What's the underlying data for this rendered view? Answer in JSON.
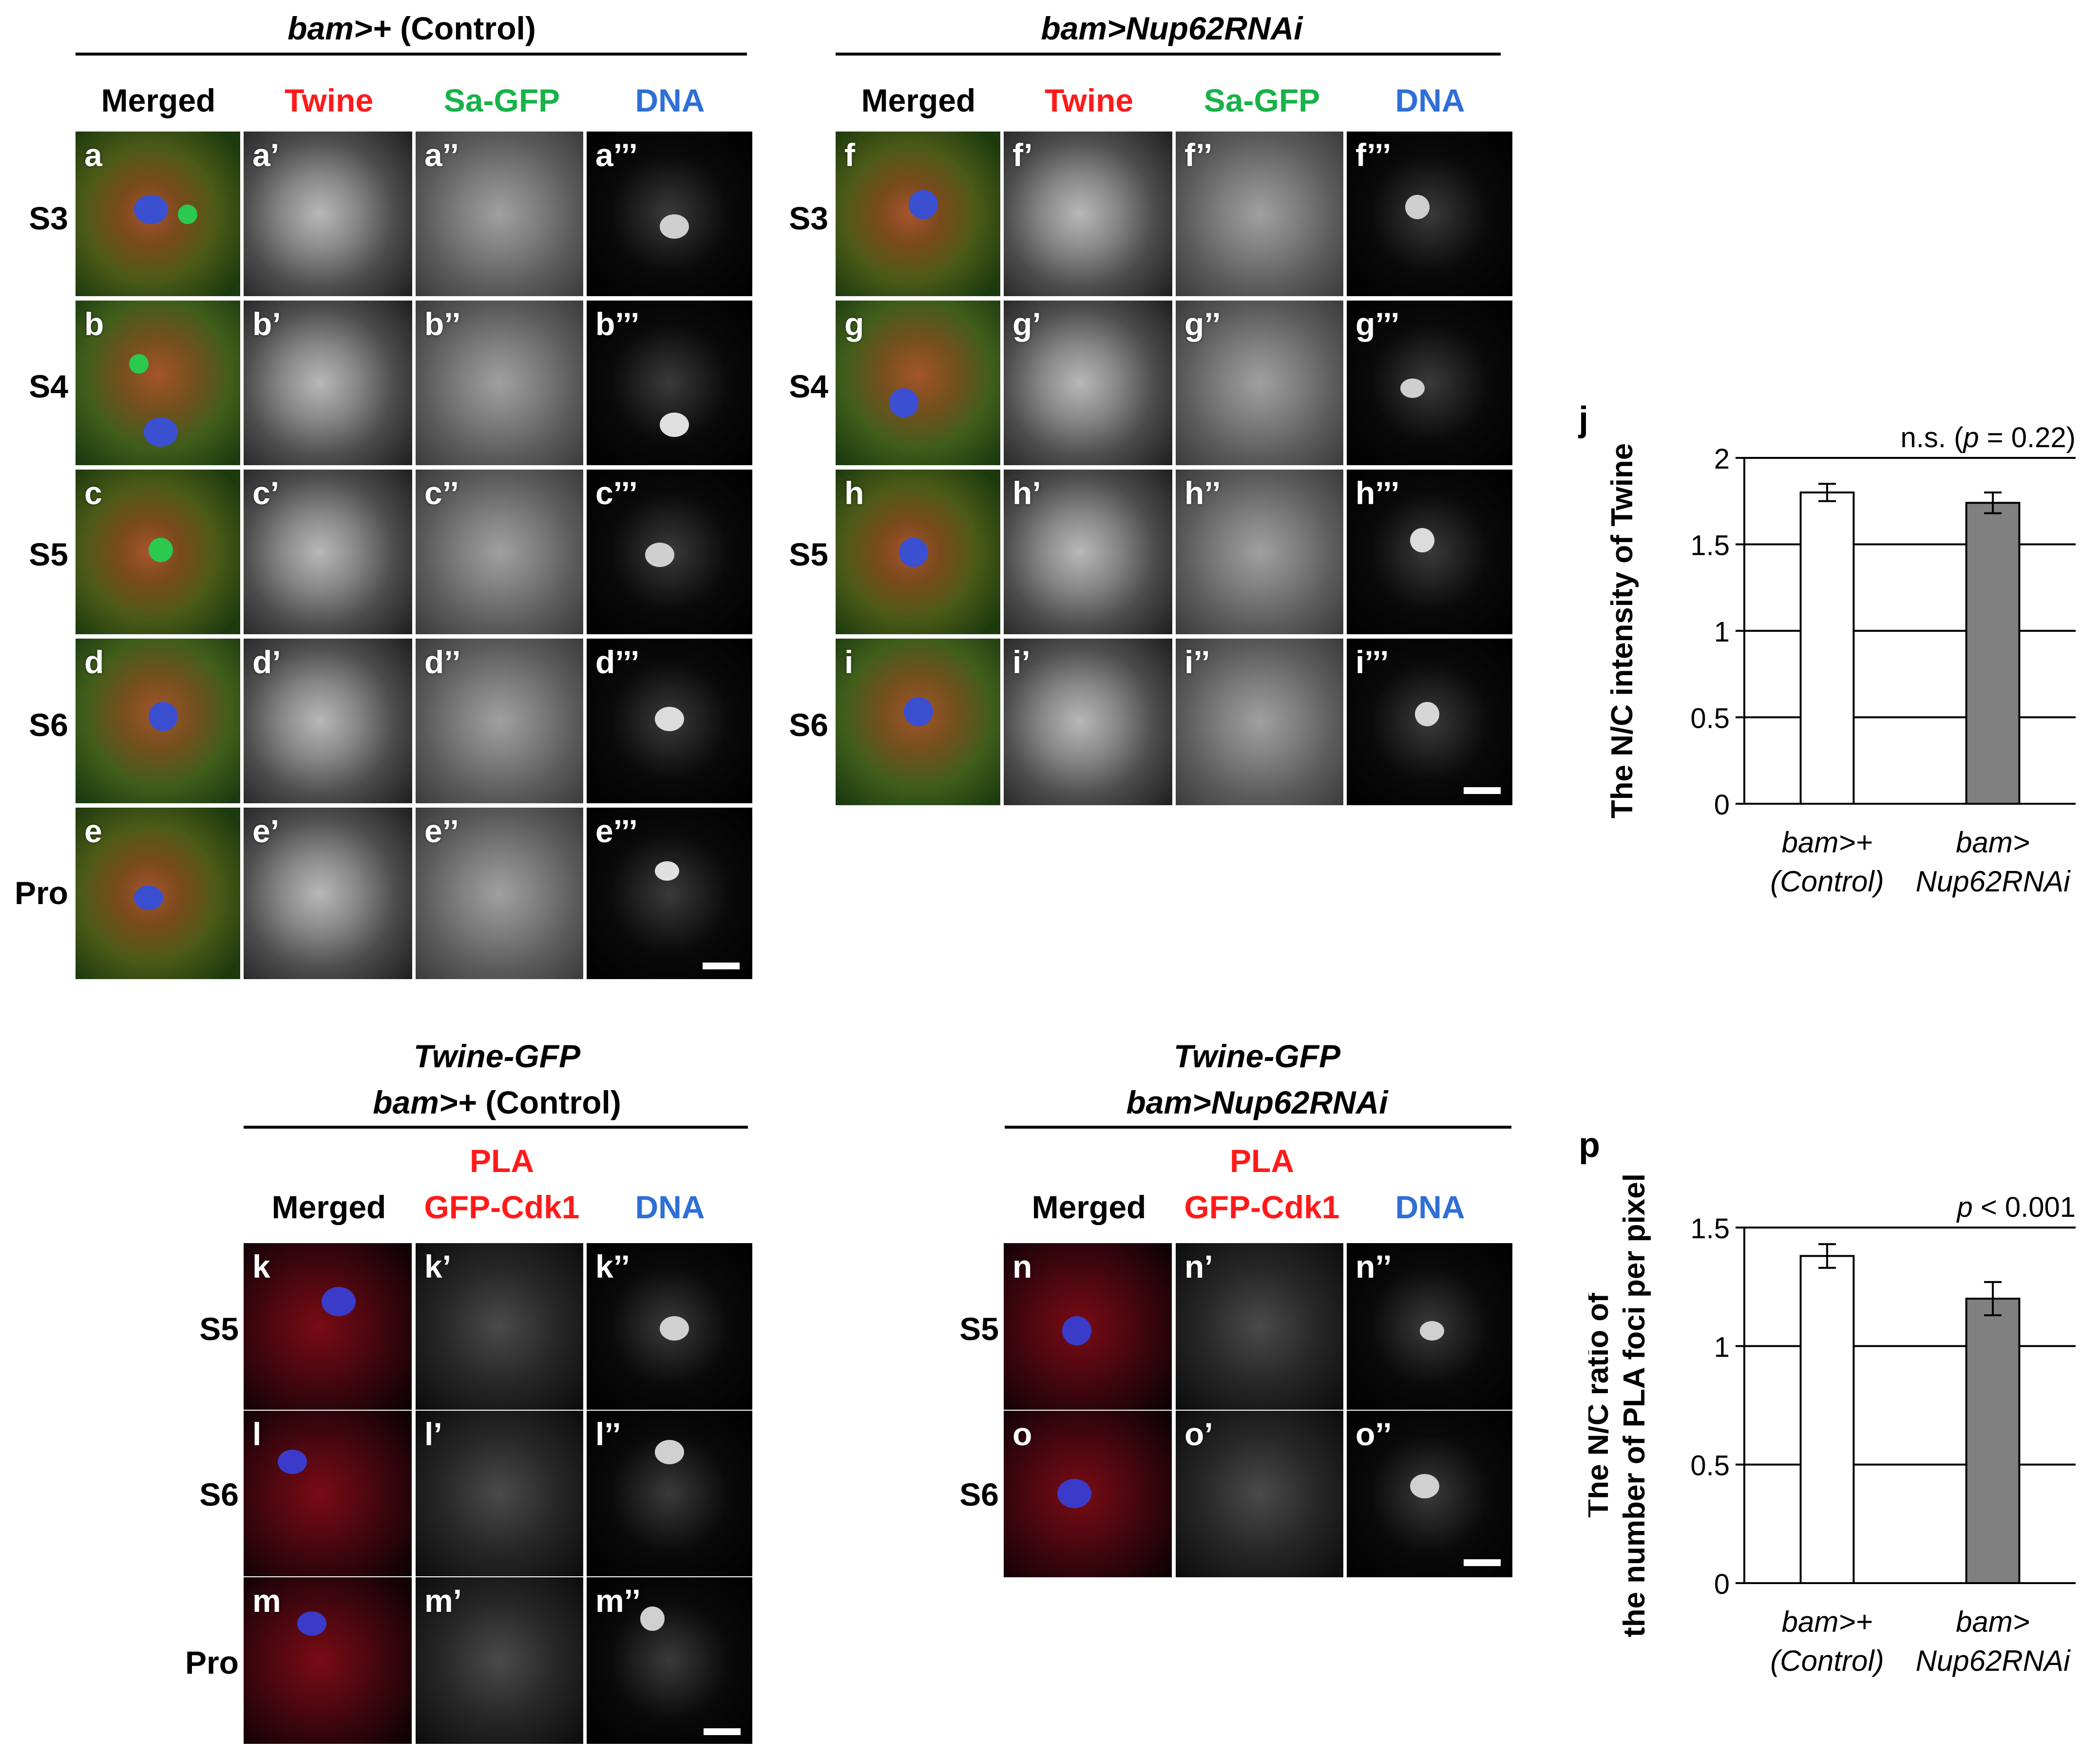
{
  "figure": {
    "group_a": {
      "header_italic": "bam>+",
      "header_rest": " (Control)",
      "columns": [
        "Merged",
        "Twine",
        "Sa-GFP",
        "DNA"
      ],
      "rows": [
        {
          "stage": "S3",
          "labels": [
            "a",
            "a’",
            "a’’",
            "a’’’"
          ]
        },
        {
          "stage": "S4",
          "labels": [
            "b",
            "b’",
            "b’’",
            "b’’’"
          ]
        },
        {
          "stage": "S5",
          "labels": [
            "c",
            "c’",
            "c’’",
            "c’’’"
          ]
        },
        {
          "stage": "S6",
          "labels": [
            "d",
            "d’",
            "d’’",
            "d’’’"
          ]
        },
        {
          "stage": "Pro",
          "labels": [
            "e",
            "e’",
            "e’’",
            "e’’’"
          ]
        }
      ]
    },
    "group_b": {
      "header": "bam>Nup62RNAi",
      "columns": [
        "Merged",
        "Twine",
        "Sa-GFP",
        "DNA"
      ],
      "rows": [
        {
          "stage": "S3",
          "labels": [
            "f",
            "f’",
            "f’’",
            "f’’’"
          ]
        },
        {
          "stage": "S4",
          "labels": [
            "g",
            "g’",
            "g’’",
            "g’’’"
          ]
        },
        {
          "stage": "S5",
          "labels": [
            "h",
            "h’",
            "h’’",
            "h’’’"
          ]
        },
        {
          "stage": "S6",
          "labels": [
            "i",
            "i’",
            "i’’",
            "i’’’"
          ]
        }
      ]
    },
    "group_c": {
      "header_line1": "Twine-GFP",
      "header_line2_italic": "bam>+",
      "header_line2_rest": " (Control)",
      "pla_label": "PLA",
      "columns": [
        "Merged",
        "GFP-Cdk1",
        "DNA"
      ],
      "rows": [
        {
          "stage": "S5",
          "labels": [
            "k",
            "k’",
            "k’’"
          ]
        },
        {
          "stage": "S6",
          "labels": [
            "l",
            "l’",
            "l’’"
          ]
        },
        {
          "stage": "Pro",
          "labels": [
            "m",
            "m’",
            "m’’"
          ]
        }
      ]
    },
    "group_d": {
      "header_line1": "Twine-GFP",
      "header_line2": "bam>Nup62RNAi",
      "pla_label": "PLA",
      "columns": [
        "Merged",
        "GFP-Cdk1",
        "DNA"
      ],
      "rows": [
        {
          "stage": "S5",
          "labels": [
            "n",
            "n’",
            "n’’"
          ]
        },
        {
          "stage": "S6",
          "labels": [
            "o",
            "o’",
            "o’’"
          ]
        }
      ]
    },
    "colors": {
      "red": "#ff1a1a",
      "green": "#18b24a",
      "blue": "#2f6fd6",
      "bar_control": "#ffffff",
      "bar_j": "#808080",
      "bar_p": "#808080"
    }
  },
  "chart_data": [
    {
      "panel": "j",
      "type": "bar",
      "categories": [
        {
          "line1": "bam>+",
          "line2": "(Control)"
        },
        {
          "line1": "bam>",
          "line2": "Nup62RNAi"
        }
      ],
      "values": [
        1.8,
        1.74
      ],
      "errors": [
        0.05,
        0.06
      ],
      "ylabel": "The N/C intensity of Twine",
      "ylim": [
        0,
        2
      ],
      "yticks": [
        "0",
        "0.5",
        "1",
        "1.5",
        "2"
      ],
      "annotation_pre": "n.s. (",
      "annotation_p": "p",
      "annotation_post": " = 0.22)",
      "grid": true
    },
    {
      "panel": "p",
      "type": "bar",
      "categories": [
        {
          "line1": "bam>+",
          "line2": "(Control)"
        },
        {
          "line1": "bam>",
          "line2": "Nup62RNAi"
        }
      ],
      "values": [
        1.38,
        1.2
      ],
      "errors": [
        0.05,
        0.07
      ],
      "ylabel_line1": "The N/C ratio of",
      "ylabel_line2": "the number of PLA foci per pixel",
      "ylim": [
        0,
        1.5
      ],
      "yticks": [
        "0",
        "0.5",
        "1",
        "1.5"
      ],
      "annotation_p": "p",
      "annotation_post": " < 0.001",
      "grid": true
    }
  ]
}
